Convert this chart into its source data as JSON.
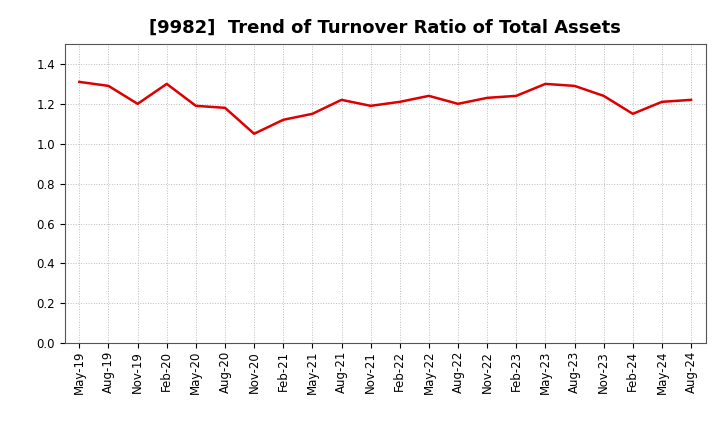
{
  "title": "[9982]  Trend of Turnover Ratio of Total Assets",
  "x_labels": [
    "May-19",
    "Aug-19",
    "Nov-19",
    "Feb-20",
    "May-20",
    "Aug-20",
    "Nov-20",
    "Feb-21",
    "May-21",
    "Aug-21",
    "Nov-21",
    "Feb-22",
    "May-22",
    "Aug-22",
    "Nov-22",
    "Feb-23",
    "May-23",
    "Aug-23",
    "Nov-23",
    "Feb-24",
    "May-24",
    "Aug-24"
  ],
  "values": [
    1.31,
    1.29,
    1.2,
    1.3,
    1.19,
    1.18,
    1.05,
    1.12,
    1.15,
    1.22,
    1.19,
    1.21,
    1.24,
    1.2,
    1.23,
    1.24,
    1.3,
    1.29,
    1.24,
    1.15,
    1.21,
    1.22
  ],
  "line_color": "#dd0000",
  "line_width": 1.8,
  "ylim": [
    0.0,
    1.5
  ],
  "yticks": [
    0.0,
    0.2,
    0.4,
    0.6,
    0.8,
    1.0,
    1.2,
    1.4
  ],
  "grid_color": "#bbbbbb",
  "bg_color": "#ffffff",
  "title_fontsize": 13,
  "tick_fontsize": 8.5
}
